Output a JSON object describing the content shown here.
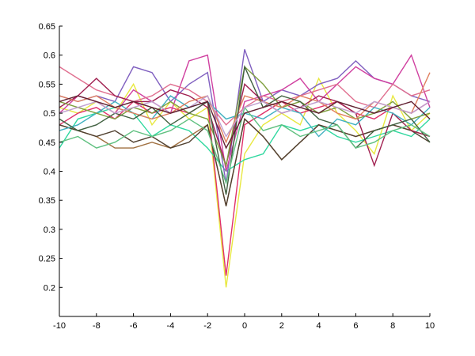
{
  "chart_data": {
    "type": "line",
    "title": "",
    "xlabel": "",
    "ylabel": "",
    "xlim": [
      -10,
      10
    ],
    "ylim": [
      0.15,
      0.65
    ],
    "grid": false,
    "x": [
      -10,
      -9,
      -8,
      -7,
      -6,
      -5,
      -4,
      -3,
      -2,
      -1,
      0,
      1,
      2,
      3,
      4,
      5,
      6,
      7,
      8,
      9,
      10
    ],
    "x_ticks": [
      -10,
      -8,
      -6,
      -4,
      -2,
      0,
      2,
      4,
      6,
      8,
      10
    ],
    "x_tick_labels": [
      "-10",
      "-8",
      "-6",
      "-4",
      "-2",
      "0",
      "2",
      "4",
      "6",
      "8",
      "10"
    ],
    "y_ticks": [
      0.2,
      0.25,
      0.3,
      0.35,
      0.4,
      0.45,
      0.5,
      0.55,
      0.6,
      0.65
    ],
    "y_tick_labels": [
      "0.2",
      "0.25",
      "0.3",
      "0.35",
      "0.4",
      "0.45",
      "0.5",
      "0.55",
      "0.6",
      "0.65"
    ],
    "series": [
      {
        "color": "#e8e840",
        "values": [
          0.51,
          0.5,
          0.52,
          0.5,
          0.55,
          0.48,
          0.52,
          0.49,
          0.51,
          0.2,
          0.43,
          0.48,
          0.5,
          0.48,
          0.56,
          0.5,
          0.47,
          0.43,
          0.53,
          0.47,
          0.5
        ]
      },
      {
        "color": "#e0306a",
        "values": [
          0.48,
          0.5,
          0.51,
          0.49,
          0.52,
          0.5,
          0.51,
          0.5,
          0.52,
          0.22,
          0.48,
          0.5,
          0.52,
          0.5,
          0.51,
          0.52,
          0.5,
          0.49,
          0.51,
          0.5,
          0.52
        ]
      },
      {
        "color": "#30d8a0",
        "values": [
          0.44,
          0.49,
          0.5,
          0.51,
          0.5,
          0.46,
          0.48,
          0.47,
          0.44,
          0.4,
          0.42,
          0.43,
          0.48,
          0.47,
          0.48,
          0.46,
          0.45,
          0.46,
          0.47,
          0.46,
          0.49
        ]
      },
      {
        "color": "#a07040",
        "values": [
          0.48,
          0.47,
          0.46,
          0.44,
          0.44,
          0.45,
          0.44,
          0.46,
          0.48,
          0.34,
          0.49,
          0.46,
          0.42,
          0.45,
          0.48,
          0.47,
          0.46,
          0.47,
          0.48,
          0.47,
          0.46
        ]
      },
      {
        "color": "#504030",
        "values": [
          0.48,
          0.47,
          0.46,
          0.47,
          0.45,
          0.46,
          0.44,
          0.45,
          0.48,
          0.34,
          0.49,
          0.46,
          0.42,
          0.45,
          0.48,
          0.47,
          0.46,
          0.47,
          0.48,
          0.47,
          0.45
        ]
      },
      {
        "color": "#8060c0",
        "values": [
          0.53,
          0.52,
          0.53,
          0.52,
          0.58,
          0.57,
          0.52,
          0.55,
          0.57,
          0.38,
          0.61,
          0.52,
          0.54,
          0.53,
          0.55,
          0.56,
          0.59,
          0.56,
          0.55,
          0.53,
          0.52
        ]
      },
      {
        "color": "#d040a0",
        "values": [
          0.5,
          0.53,
          0.52,
          0.5,
          0.54,
          0.52,
          0.5,
          0.59,
          0.6,
          0.4,
          0.52,
          0.53,
          0.54,
          0.56,
          0.52,
          0.55,
          0.58,
          0.56,
          0.55,
          0.6,
          0.51
        ]
      },
      {
        "color": "#e07090",
        "values": [
          0.58,
          0.56,
          0.54,
          0.53,
          0.52,
          0.53,
          0.55,
          0.54,
          0.52,
          0.48,
          0.51,
          0.53,
          0.52,
          0.53,
          0.54,
          0.55,
          0.52,
          0.51,
          0.55,
          0.53,
          0.54
        ]
      },
      {
        "color": "#a02050",
        "values": [
          0.51,
          0.53,
          0.56,
          0.53,
          0.52,
          0.52,
          0.54,
          0.53,
          0.51,
          0.41,
          0.55,
          0.52,
          0.5,
          0.51,
          0.53,
          0.52,
          0.5,
          0.41,
          0.5,
          0.47,
          0.46
        ]
      },
      {
        "color": "#40b0c0",
        "values": [
          0.47,
          0.48,
          0.5,
          0.52,
          0.5,
          0.49,
          0.53,
          0.51,
          0.52,
          0.49,
          0.5,
          0.49,
          0.51,
          0.5,
          0.46,
          0.49,
          0.48,
          0.51,
          0.5,
          0.48,
          0.51
        ]
      },
      {
        "color": "#80a040",
        "values": [
          0.52,
          0.51,
          0.5,
          0.49,
          0.51,
          0.5,
          0.52,
          0.5,
          0.49,
          0.41,
          0.58,
          0.55,
          0.51,
          0.52,
          0.5,
          0.51,
          0.49,
          0.5,
          0.52,
          0.49,
          0.5
        ]
      },
      {
        "color": "#e08060",
        "values": [
          0.53,
          0.52,
          0.53,
          0.51,
          0.5,
          0.49,
          0.5,
          0.52,
          0.53,
          0.45,
          0.53,
          0.52,
          0.51,
          0.53,
          0.52,
          0.5,
          0.49,
          0.52,
          0.51,
          0.5,
          0.57
        ]
      },
      {
        "color": "#406040",
        "values": [
          0.49,
          0.47,
          0.48,
          0.5,
          0.49,
          0.51,
          0.48,
          0.5,
          0.52,
          0.36,
          0.58,
          0.51,
          0.53,
          0.52,
          0.49,
          0.48,
          0.44,
          0.47,
          0.48,
          0.49,
          0.45
        ]
      },
      {
        "color": "#60c080",
        "values": [
          0.45,
          0.46,
          0.44,
          0.45,
          0.47,
          0.46,
          0.47,
          0.49,
          0.47,
          0.38,
          0.51,
          0.47,
          0.48,
          0.46,
          0.47,
          0.48,
          0.44,
          0.45,
          0.47,
          0.48,
          0.46
        ]
      },
      {
        "color": "#c0a0d0",
        "values": [
          0.5,
          0.51,
          0.52,
          0.5,
          0.51,
          0.52,
          0.5,
          0.51,
          0.53,
          0.46,
          0.51,
          0.52,
          0.5,
          0.51,
          0.52,
          0.51,
          0.5,
          0.52,
          0.51,
          0.5,
          0.52
        ]
      },
      {
        "color": "#602030",
        "values": [
          0.52,
          0.53,
          0.52,
          0.51,
          0.52,
          0.51,
          0.5,
          0.51,
          0.52,
          0.44,
          0.5,
          0.51,
          0.52,
          0.51,
          0.5,
          0.52,
          0.51,
          0.5,
          0.51,
          0.52,
          0.49
        ]
      }
    ]
  }
}
